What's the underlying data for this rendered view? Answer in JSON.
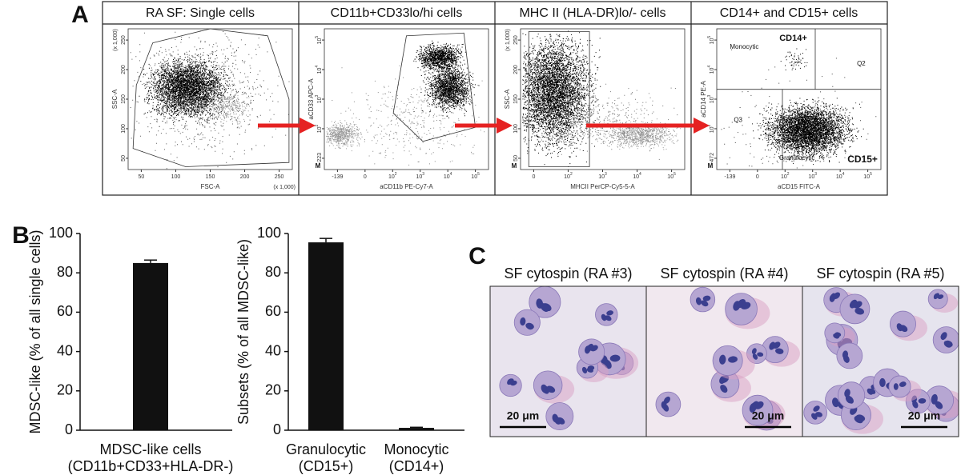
{
  "panel_labels": [
    "A",
    "B",
    "C"
  ],
  "flow_plots": [
    {
      "title": "RA SF: Single cells",
      "xlabel": "FSC-A",
      "ylabel": "SSC-A",
      "x_unit": "(x 1,000)",
      "y_unit": "(x 1,000)",
      "xticks": [
        "50",
        "100",
        "150",
        "200",
        "250"
      ],
      "yticks": [
        "50",
        "100",
        "150",
        "200",
        "250"
      ]
    },
    {
      "title": "CD11b+CD33lo/hi cells",
      "xlabel": "aCD11b PE-Cy7-A",
      "ylabel": "aCD33 APC-A",
      "corner_mark": "M",
      "xticks": [
        "-139",
        "0",
        {
          "base": "10",
          "exp": "2"
        },
        {
          "base": "10",
          "exp": "3"
        },
        {
          "base": "10",
          "exp": "4"
        },
        {
          "base": "10",
          "exp": "5"
        }
      ],
      "yticks": [
        "-223",
        {
          "base": "10",
          "exp": "2"
        },
        {
          "base": "10",
          "exp": "3"
        },
        {
          "base": "10",
          "exp": "4"
        },
        {
          "base": "10",
          "exp": "5"
        }
      ]
    },
    {
      "title": "MHC II (HLA-DR)lo/- cells",
      "xlabel": "MHCII PerCP-Cy5-5-A",
      "ylabel": "SSC-A",
      "y_unit": "(x 1,000)",
      "corner_mark": "M",
      "xticks": [
        "0",
        {
          "base": "10",
          "exp": "2"
        },
        {
          "base": "10",
          "exp": "3"
        },
        {
          "base": "10",
          "exp": "4"
        },
        {
          "base": "10",
          "exp": "5"
        }
      ],
      "yticks": [
        "50",
        "100",
        "150",
        "200",
        "250"
      ]
    },
    {
      "title": "CD14+ and CD15+ cells",
      "xlabel": "aCD15 FITC-A",
      "ylabel": "aCD14 PE-A",
      "corner_mark": "M",
      "xticks": [
        "-139",
        "0",
        {
          "base": "10",
          "exp": "2"
        },
        {
          "base": "10",
          "exp": "3"
        },
        {
          "base": "10",
          "exp": "4"
        },
        {
          "base": "10",
          "exp": "5"
        }
      ],
      "yticks": [
        "-472",
        {
          "base": "10",
          "exp": "2"
        },
        {
          "base": "10",
          "exp": "3"
        },
        {
          "base": "10",
          "exp": "4"
        },
        {
          "base": "10",
          "exp": "5"
        }
      ],
      "annotations": [
        "CD14+",
        "Monocytic",
        "Q2",
        "Q3",
        "Granulocytic",
        "CD15+"
      ]
    }
  ],
  "chart_data": [
    {
      "type": "bar",
      "ylabel": "MDSC-like (% of all single cells)",
      "categories": [
        "MDSC-like cells"
      ],
      "category_notes": [
        "(CD11b+CD33+HLA-DR-)"
      ],
      "values": [
        85
      ],
      "errors": [
        1.5
      ],
      "color": "#111111",
      "ylim": [
        0,
        100
      ],
      "yticks": [
        0,
        20,
        40,
        60,
        80,
        100
      ]
    },
    {
      "type": "bar",
      "ylabel": "Subsets (% of all MDSC-like)",
      "categories": [
        "Granulocytic",
        "Monocytic"
      ],
      "category_notes": [
        "(CD15+)",
        "(CD14+)"
      ],
      "values": [
        95.5,
        1.2
      ],
      "errors": [
        2,
        0.3
      ],
      "color": "#111111",
      "ylim": [
        0,
        100
      ],
      "yticks": [
        0,
        20,
        40,
        60,
        80,
        100
      ]
    }
  ],
  "cytospins": [
    {
      "title": "SF cytospin (RA #3)",
      "scale": "20 μm"
    },
    {
      "title": "SF cytospin (RA #4)",
      "scale": "20 μm"
    },
    {
      "title": "SF cytospin (RA #5)",
      "scale": "20 μm"
    }
  ]
}
